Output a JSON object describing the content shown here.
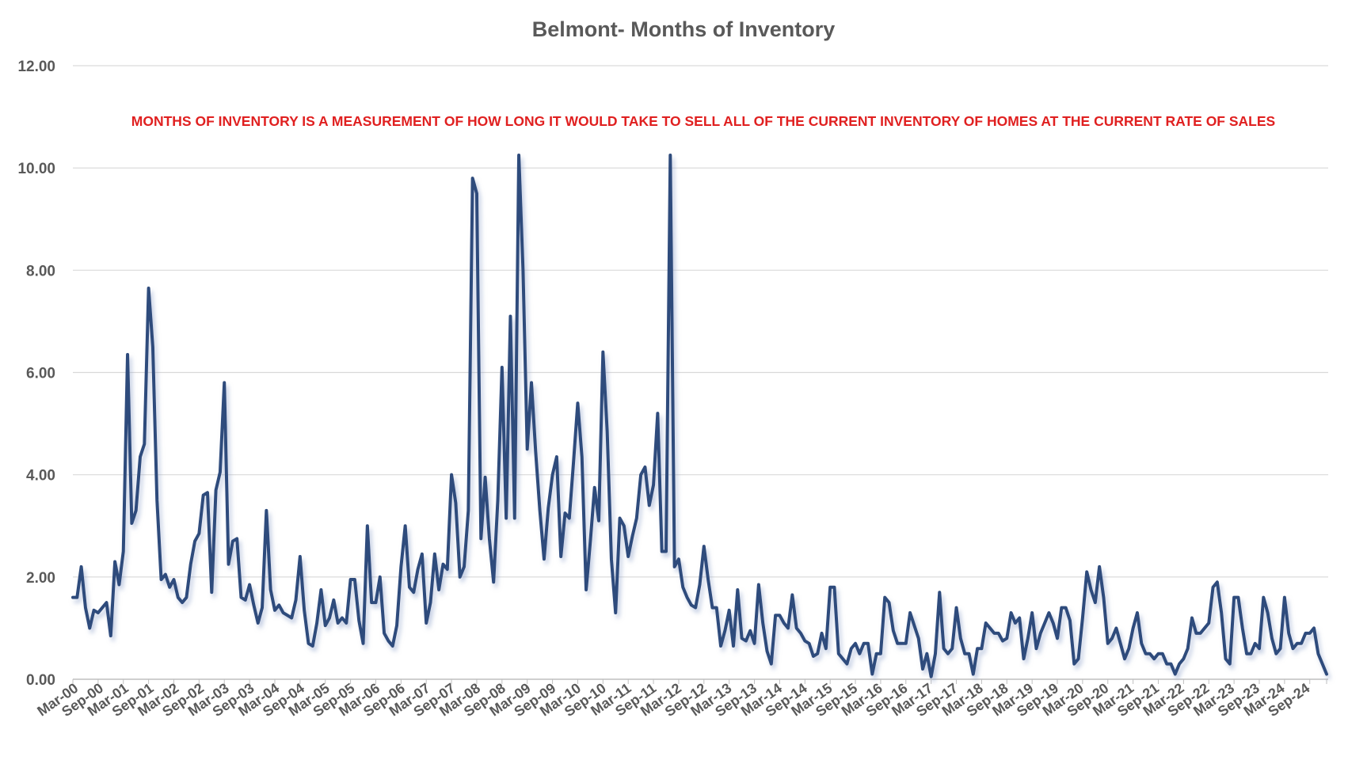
{
  "chart_data": {
    "type": "line",
    "title": "Belmont- Months of Inventory",
    "annotation": "MONTHS OF INVENTORY IS A MEASUREMENT OF HOW LONG IT WOULD TAKE TO SELL ALL OF THE CURRENT INVENTORY OF HOMES AT THE CURRENT RATE OF SALES",
    "ylim": [
      0,
      12
    ],
    "yticks": [
      "0.00",
      "2.00",
      "4.00",
      "6.00",
      "8.00",
      "10.00",
      "12.00"
    ],
    "xticks": [
      "Mar-00",
      "Sep-00",
      "Mar-01",
      "Sep-01",
      "Mar-02",
      "Sep-02",
      "Mar-03",
      "Sep-03",
      "Mar-04",
      "Sep-04",
      "Mar-05",
      "Sep-05",
      "Mar-06",
      "Sep-06",
      "Mar-07",
      "Sep-07",
      "Mar-08",
      "Sep-08",
      "Mar-09",
      "Sep-09",
      "Mar-10",
      "Sep-10",
      "Mar-11",
      "Sep-11",
      "Mar-12",
      "Sep-12",
      "Mar-13",
      "Sep-13",
      "Mar-14",
      "Sep-14",
      "Mar-15",
      "Sep-15",
      "Mar-16",
      "Sep-16",
      "Mar-17",
      "Sep-17",
      "Mar-18",
      "Sep-18",
      "Mar-19",
      "Sep-19",
      "Mar-20",
      "Sep-20",
      "Mar-21",
      "Sep-21",
      "Mar-22",
      "Sep-22",
      "Mar-23",
      "Sep-23",
      "Mar-24",
      "Sep-24"
    ],
    "grid": true,
    "legend": "none",
    "colors": {
      "line": "#2f4b7c",
      "annotation": "#e02020",
      "text": "#595959",
      "grid": "#d9d9d9"
    },
    "series": [
      {
        "values": [
          1.6,
          1.6,
          2.2,
          1.4,
          1.0,
          1.35,
          1.3,
          1.4,
          1.5,
          0.85,
          2.3,
          1.85,
          2.5,
          6.35,
          3.05,
          3.3,
          4.35,
          4.6,
          7.65,
          6.5,
          3.5,
          1.95,
          2.05,
          1.8,
          1.95,
          1.6,
          1.5,
          1.6,
          2.25,
          2.7,
          2.85,
          3.6,
          3.65,
          1.7,
          3.7,
          4.05,
          5.8,
          2.25,
          2.7,
          2.75,
          1.6,
          1.55,
          1.85,
          1.45,
          1.1,
          1.4,
          3.3,
          1.75,
          1.35,
          1.45,
          1.3,
          1.25,
          1.2,
          1.55,
          2.4,
          1.35,
          0.7,
          0.65,
          1.1,
          1.75,
          1.05,
          1.2,
          1.55,
          1.1,
          1.2,
          1.1,
          1.95,
          1.95,
          1.15,
          0.7,
          3.0,
          1.5,
          1.5,
          2.0,
          0.9,
          0.75,
          0.65,
          1.05,
          2.2,
          3.0,
          1.8,
          1.7,
          2.15,
          2.45,
          1.1,
          1.5,
          2.45,
          1.75,
          2.25,
          2.15,
          4.0,
          3.45,
          2.0,
          2.2,
          3.3,
          9.8,
          9.5,
          2.75,
          3.95,
          2.75,
          1.9,
          3.5,
          6.1,
          3.15,
          7.1,
          3.15,
          10.25,
          8.0,
          4.5,
          5.8,
          4.45,
          3.3,
          2.35,
          3.35,
          4.0,
          4.35,
          2.4,
          3.25,
          3.15,
          4.25,
          5.4,
          4.35,
          1.75,
          2.7,
          3.75,
          3.1,
          6.4,
          4.85,
          2.35,
          1.3,
          3.15,
          3.0,
          2.4,
          2.8,
          3.15,
          4.0,
          4.15,
          3.4,
          3.8,
          5.2,
          2.5,
          2.5,
          10.25,
          2.2,
          2.35,
          1.8,
          1.6,
          1.45,
          1.4,
          1.85,
          2.6,
          1.95,
          1.4,
          1.4,
          0.65,
          0.95,
          1.35,
          0.65,
          1.75,
          0.8,
          0.75,
          0.95,
          0.7,
          1.85,
          1.1,
          0.55,
          0.3,
          1.25,
          1.25,
          1.1,
          1.0,
          1.65,
          1.0,
          0.9,
          0.75,
          0.7,
          0.45,
          0.5,
          0.9,
          0.6,
          1.8,
          1.8,
          0.5,
          0.4,
          0.3,
          0.6,
          0.7,
          0.5,
          0.7,
          0.7,
          0.1,
          0.5,
          0.5,
          1.6,
          1.5,
          0.95,
          0.7,
          0.7,
          0.7,
          1.3,
          1.05,
          0.8,
          0.2,
          0.5,
          0.05,
          0.5,
          1.7,
          0.6,
          0.5,
          0.6,
          1.4,
          0.8,
          0.5,
          0.5,
          0.1,
          0.6,
          0.6,
          1.1,
          1.0,
          0.9,
          0.9,
          0.75,
          0.8,
          1.3,
          1.1,
          1.2,
          0.4,
          0.8,
          1.3,
          0.6,
          0.9,
          1.1,
          1.3,
          1.1,
          0.8,
          1.4,
          1.4,
          1.15,
          0.3,
          0.4,
          1.2,
          2.1,
          1.75,
          1.5,
          2.2,
          1.6,
          0.7,
          0.8,
          1.0,
          0.7,
          0.4,
          0.6,
          1.0,
          1.3,
          0.7,
          0.5,
          0.5,
          0.4,
          0.5,
          0.5,
          0.3,
          0.3,
          0.1,
          0.3,
          0.4,
          0.6,
          1.2,
          0.9,
          0.9,
          1.0,
          1.1,
          1.8,
          1.9,
          1.3,
          0.4,
          0.3,
          1.6,
          1.6,
          1.0,
          0.5,
          0.5,
          0.7,
          0.6,
          1.6,
          1.3,
          0.8,
          0.5,
          0.6,
          1.6,
          0.9,
          0.6,
          0.7,
          0.7,
          0.9,
          0.9,
          1.0,
          0.5,
          0.3,
          0.1
        ]
      }
    ]
  }
}
